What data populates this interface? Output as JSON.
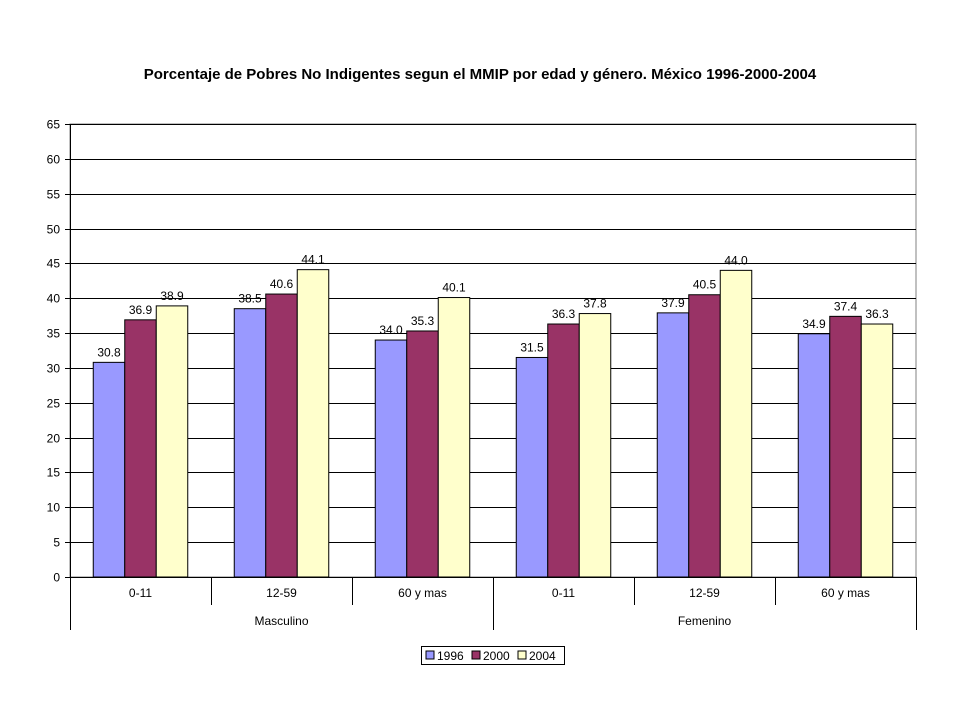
{
  "chart_data": {
    "type": "bar",
    "title": "Porcentaje de Pobres No Indigentes segun el MMIP por edad y género. México 1996-2000-2004",
    "groups": [
      {
        "name": "Masculino",
        "categories": [
          "0-11",
          "12-59",
          "60 y mas"
        ]
      },
      {
        "name": "Femenino",
        "categories": [
          "0-11",
          "12-59",
          "60 y mas"
        ]
      }
    ],
    "categories": [
      "0-11",
      "12-59",
      "60 y mas",
      "0-11",
      "12-59",
      "60 y mas"
    ],
    "series": [
      {
        "name": "1996",
        "color": "#9999ff",
        "values": [
          30.8,
          38.5,
          34.0,
          31.5,
          37.9,
          34.9
        ]
      },
      {
        "name": "2000",
        "color": "#993366",
        "values": [
          36.9,
          40.6,
          35.3,
          36.3,
          40.5,
          37.4
        ]
      },
      {
        "name": "2004",
        "color": "#ffffcc",
        "values": [
          38.9,
          44.1,
          40.1,
          37.8,
          44.0,
          36.3
        ]
      }
    ],
    "ylim": [
      0,
      65
    ],
    "ytick_step": 5,
    "xlabel": "",
    "ylabel": "",
    "grid": true,
    "legend_position": "bottom",
    "data_labels": true
  }
}
